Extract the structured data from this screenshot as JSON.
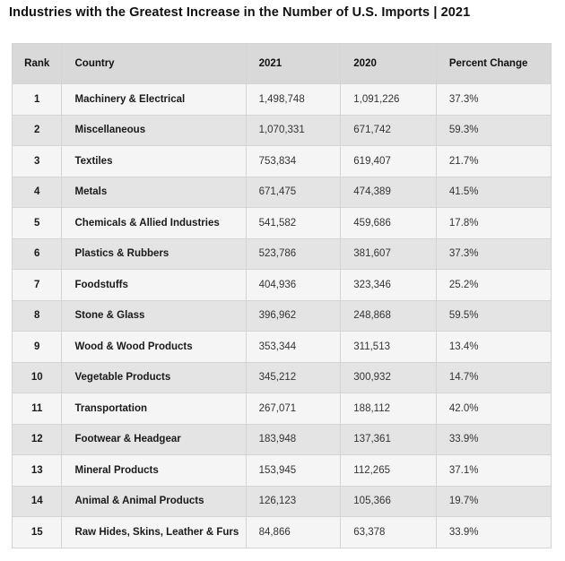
{
  "title": "Industries with the Greatest Increase in the Number of U.S. Imports | 2021",
  "headers": {
    "rank": "Rank",
    "country": "Country",
    "y2021": "2021",
    "y2020": "2020",
    "pct": "Percent Change"
  },
  "rows": [
    {
      "rank": "1",
      "country": "Machinery & Electrical",
      "y2021": "1,498,748",
      "y2020": "1,091,226",
      "pct": "37.3%"
    },
    {
      "rank": "2",
      "country": "Miscellaneous",
      "y2021": "1,070,331",
      "y2020": "671,742",
      "pct": "59.3%"
    },
    {
      "rank": "3",
      "country": "Textiles",
      "y2021": "753,834",
      "y2020": "619,407",
      "pct": "21.7%"
    },
    {
      "rank": "4",
      "country": "Metals",
      "y2021": "671,475",
      "y2020": "474,389",
      "pct": "41.5%"
    },
    {
      "rank": "5",
      "country": "Chemicals & Allied Industries",
      "y2021": "541,582",
      "y2020": "459,686",
      "pct": "17.8%"
    },
    {
      "rank": "6",
      "country": "Plastics & Rubbers",
      "y2021": "523,786",
      "y2020": "381,607",
      "pct": "37.3%"
    },
    {
      "rank": "7",
      "country": "Foodstuffs",
      "y2021": "404,936",
      "y2020": "323,346",
      "pct": "25.2%"
    },
    {
      "rank": "8",
      "country": "Stone & Glass",
      "y2021": "396,962",
      "y2020": "248,868",
      "pct": "59.5%"
    },
    {
      "rank": "9",
      "country": "Wood & Wood Products",
      "y2021": "353,344",
      "y2020": "311,513",
      "pct": "13.4%"
    },
    {
      "rank": "10",
      "country": "Vegetable Products",
      "y2021": "345,212",
      "y2020": "300,932",
      "pct": "14.7%"
    },
    {
      "rank": "11",
      "country": "Transportation",
      "y2021": "267,071",
      "y2020": "188,112",
      "pct": "42.0%"
    },
    {
      "rank": "12",
      "country": "Footwear & Headgear",
      "y2021": "183,948",
      "y2020": "137,361",
      "pct": "33.9%"
    },
    {
      "rank": "13",
      "country": "Mineral Products",
      "y2021": "153,945",
      "y2020": "112,265",
      "pct": "37.1%"
    },
    {
      "rank": "14",
      "country": "Animal & Animal Products",
      "y2021": "126,123",
      "y2020": "105,366",
      "pct": "19.7%"
    },
    {
      "rank": "15",
      "country": "Raw Hides, Skins, Leather & Furs",
      "y2021": "84,866",
      "y2020": "63,378",
      "pct": "33.9%"
    }
  ]
}
